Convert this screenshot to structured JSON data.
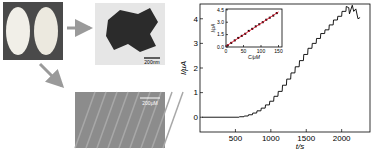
{
  "panels": {
    "scale_bars": [
      "200nm",
      "200μM"
    ]
  },
  "chart_data": [
    {
      "type": "line",
      "x_label": "t/s",
      "y_label": "I/μA",
      "xlim": [
        0,
        2400
      ],
      "ylim": [
        -0.6,
        4.6
      ],
      "xticks": [
        500,
        1000,
        1500,
        2000
      ],
      "yticks": [
        0,
        1,
        2,
        3,
        4
      ],
      "grid": false,
      "series": [
        {
          "color": "#000000",
          "x": [
            30,
            550,
            560,
            620,
            625,
            680,
            685,
            740,
            745,
            800,
            805,
            860,
            865,
            920,
            925,
            980,
            985,
            1040,
            1045,
            1100,
            1105,
            1160,
            1165,
            1220,
            1225,
            1280,
            1285,
            1340,
            1345,
            1400,
            1405,
            1460,
            1465,
            1520,
            1525,
            1580,
            1585,
            1640,
            1645,
            1700,
            1705,
            1760,
            1765,
            1820,
            1825,
            1880,
            1885,
            1940,
            1945,
            2000,
            2005,
            2060,
            2065,
            2100,
            2110,
            2150,
            2170,
            2200,
            2230,
            2260
          ],
          "values": [
            0,
            0,
            0.02,
            0.02,
            0.05,
            0.05,
            0.1,
            0.1,
            0.17,
            0.17,
            0.26,
            0.26,
            0.37,
            0.37,
            0.5,
            0.5,
            0.65,
            0.65,
            0.85,
            0.85,
            1.05,
            1.05,
            1.3,
            1.3,
            1.55,
            1.55,
            1.8,
            1.8,
            2.05,
            2.05,
            2.3,
            2.3,
            2.55,
            2.55,
            2.8,
            2.8,
            3.0,
            3.0,
            3.2,
            3.2,
            3.4,
            3.4,
            3.55,
            3.55,
            3.75,
            3.75,
            3.95,
            3.95,
            4.1,
            4.1,
            4.3,
            4.3,
            4.5,
            4.45,
            4.2,
            4.55,
            4.3,
            4.4,
            4.0,
            4.05
          ]
        }
      ]
    },
    {
      "type": "scatter",
      "x_label": "C/μM",
      "y_label": "I/μA",
      "xlim": [
        0,
        160
      ],
      "ylim": [
        0,
        4.6
      ],
      "xticks": [
        0,
        50,
        100,
        150
      ],
      "yticks": [
        {
          "value": 0,
          "label": "0.0"
        },
        1.5,
        {
          "value": 3,
          "label": "3.0"
        },
        4.5
      ],
      "grid": false,
      "series": [
        {
          "type": "scatter",
          "marker": "square",
          "color": "#000000",
          "x": [
            5,
            15,
            25,
            35,
            45,
            55,
            65,
            75,
            85,
            95,
            105,
            115,
            125,
            135,
            145
          ],
          "values": [
            0.2,
            0.5,
            0.8,
            1.1,
            1.35,
            1.6,
            1.95,
            2.2,
            2.5,
            2.75,
            3.0,
            3.3,
            3.55,
            3.8,
            4.1
          ]
        },
        {
          "type": "line",
          "color": "#e8001c",
          "x": [
            0,
            150
          ],
          "values": [
            0.1,
            4.25
          ]
        }
      ]
    }
  ]
}
